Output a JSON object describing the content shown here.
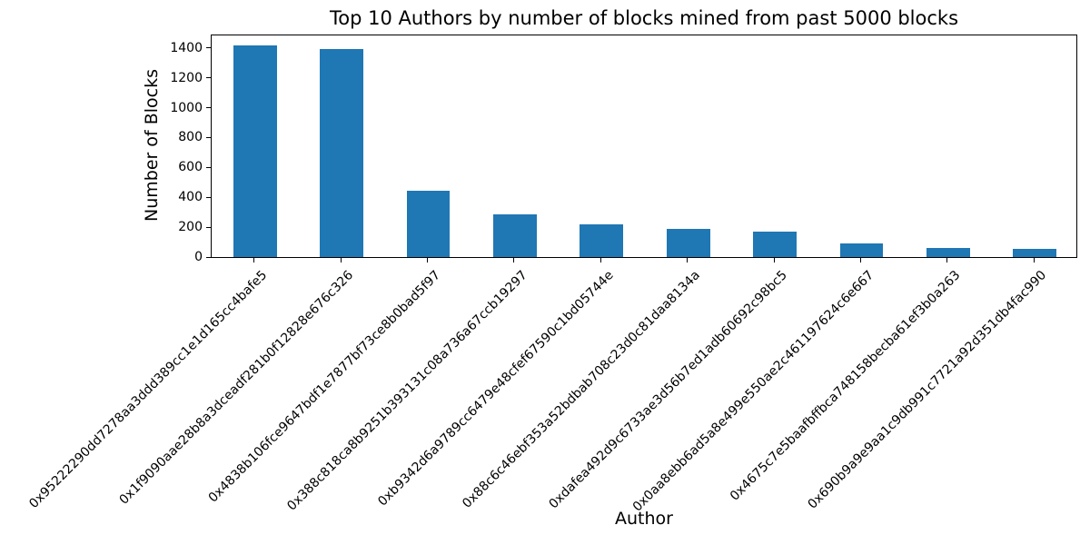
{
  "figure": {
    "background": "#ffffff"
  },
  "chart_data": {
    "type": "bar",
    "title": "Top 10 Authors by number of blocks mined from past 5000 blocks",
    "xlabel": "Author",
    "ylabel": "Number of Blocks",
    "categories": [
      "0x95222290dd7278aa3ddd389cc1e1d165cc4bafe5",
      "0x1f9090aae28b8a3dceadf281b0f12828e676c326",
      "0x4838b106fce9647bdf1e7877bf73ce8b0bad5f97",
      "0x388c818ca8b9251b393131c08a736a67ccb19297",
      "0xb9342d6a9789cc6479e48cfef67590c1bd05744e",
      "0x88c6c46ebf353a52bdbab708c23d0c81daa8134a",
      "0xdafea492d9c6733ae3d56b7ed1adb60692c98bc5",
      "0x0aa8ebb6ad5a8e499e550ae2c461197624c6e667",
      "0x4675c7e5baafbffbca748158becba61ef3b0a263",
      "0x690b9a9e9aa1c9db991c7721a92d351db4fac990"
    ],
    "values": [
      1418,
      1394,
      445,
      287,
      217,
      187,
      170,
      90,
      60,
      52
    ],
    "bar_color": "#1f77b4",
    "axis_color": "#000000",
    "text_color": "#000000",
    "yticks": [
      0,
      200,
      400,
      600,
      800,
      1000,
      1200,
      1400
    ],
    "ylim": [
      0,
      1490
    ],
    "xtick_rotation": 45,
    "grid": false,
    "legend": "none"
  }
}
